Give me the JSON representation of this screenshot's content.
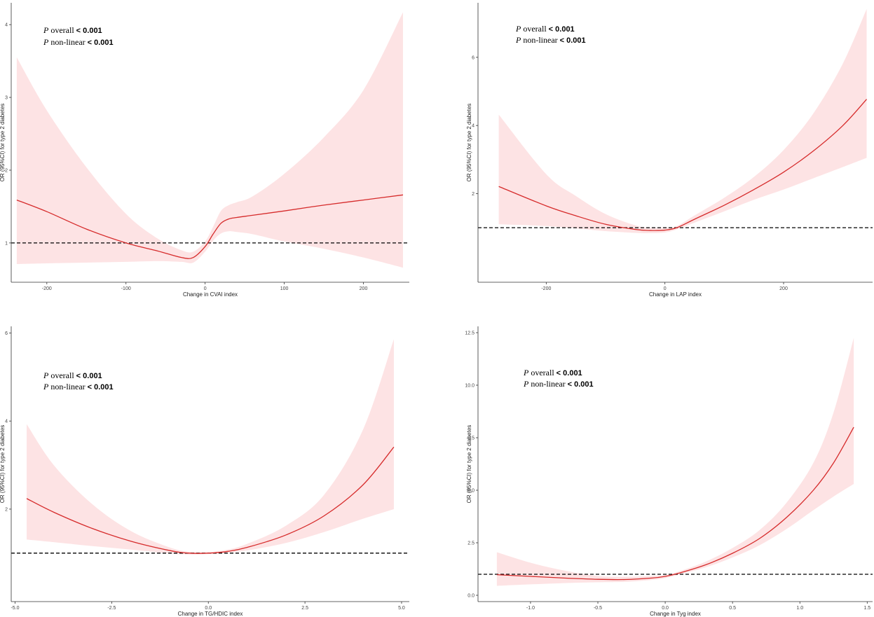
{
  "colors": {
    "band": "#fde3e4",
    "line": "#d62b2b",
    "ref": "#000000",
    "axis": "#333333"
  },
  "annotation": {
    "p_symbol": "P",
    "overall_label": "overall",
    "nonlinear_label": "non-linear",
    "lt": "<",
    "value": "0.001"
  },
  "chart_data": [
    {
      "type": "line",
      "title": "",
      "xlabel": "Change in CVAI index",
      "ylabel": "OR (95%CI) for type 2 diabetes",
      "xlim": [
        -245,
        258
      ],
      "ylim": [
        0.46,
        4.3
      ],
      "xticks": [
        -200,
        -100,
        0,
        100,
        200
      ],
      "yticks": [
        1,
        2,
        3,
        4
      ],
      "reference_y": 1,
      "series": [
        {
          "name": "OR",
          "x": [
            -238,
            -200,
            -150,
            -100,
            -60,
            -30,
            -15,
            0,
            10,
            20,
            30,
            40,
            60,
            100,
            150,
            200,
            250
          ],
          "y": [
            1.59,
            1.43,
            1.19,
            1.0,
            0.89,
            0.8,
            0.8,
            0.95,
            1.12,
            1.27,
            1.33,
            1.35,
            1.38,
            1.44,
            1.52,
            1.59,
            1.66
          ],
          "lower": [
            0.71,
            0.72,
            0.73,
            0.74,
            0.75,
            0.74,
            0.73,
            0.88,
            1.03,
            1.13,
            1.16,
            1.15,
            1.12,
            1.02,
            0.92,
            0.8,
            0.66
          ],
          "upper": [
            3.55,
            2.82,
            2.04,
            1.4,
            1.06,
            0.9,
            0.88,
            1.02,
            1.22,
            1.44,
            1.52,
            1.56,
            1.64,
            1.95,
            2.45,
            3.1,
            4.17
          ]
        }
      ]
    },
    {
      "type": "line",
      "title": "",
      "xlabel": "Change in LAP index",
      "ylabel": "OR (95%CI) for type 2 diabetes",
      "xlim": [
        -315,
        350
      ],
      "ylim": [
        -0.6,
        7.6
      ],
      "xticks": [
        -200,
        0,
        200
      ],
      "yticks": [
        2,
        4,
        6
      ],
      "reference_y": 1,
      "series": [
        {
          "name": "OR",
          "x": [
            -280,
            -200,
            -150,
            -100,
            -50,
            -25,
            0,
            20,
            50,
            100,
            150,
            200,
            250,
            300,
            340
          ],
          "y": [
            2.21,
            1.64,
            1.35,
            1.1,
            0.95,
            0.92,
            0.93,
            1.0,
            1.25,
            1.66,
            2.12,
            2.63,
            3.25,
            4.0,
            4.77
          ],
          "lower": [
            1.1,
            1.05,
            0.98,
            0.9,
            0.85,
            0.84,
            0.86,
            0.95,
            1.15,
            1.48,
            1.82,
            2.12,
            2.45,
            2.78,
            3.05
          ],
          "upper": [
            4.32,
            2.57,
            1.93,
            1.4,
            1.07,
            1.0,
            1.0,
            1.05,
            1.36,
            1.88,
            2.49,
            3.28,
            4.35,
            5.82,
            7.42
          ]
        }
      ]
    },
    {
      "type": "line",
      "title": "",
      "xlabel": "Change in TG/HDIC index",
      "ylabel": "OR (95%CI) for type 2 diabetes",
      "xlim": [
        -5.1,
        5.2
      ],
      "ylim": [
        -0.1,
        6.15
      ],
      "xticks": [
        -5.0,
        -2.5,
        0.0,
        2.5,
        5.0
      ],
      "xtick_labels": [
        "-5.0",
        "-2.5",
        "0.0",
        "2.5",
        "5.0"
      ],
      "yticks": [
        2,
        4,
        6
      ],
      "reference_y": 1,
      "series": [
        {
          "name": "OR",
          "x": [
            -4.7,
            -4.0,
            -3.0,
            -2.0,
            -1.0,
            -0.5,
            0.0,
            0.5,
            1.0,
            2.0,
            3.0,
            4.0,
            4.8
          ],
          "y": [
            2.24,
            1.93,
            1.56,
            1.27,
            1.06,
            1.0,
            1.0,
            1.04,
            1.13,
            1.41,
            1.85,
            2.55,
            3.41
          ],
          "lower": [
            1.31,
            1.25,
            1.16,
            1.08,
            0.99,
            0.97,
            0.98,
            1.01,
            1.06,
            1.23,
            1.48,
            1.78,
            2.0
          ],
          "upper": [
            3.93,
            3.0,
            2.11,
            1.5,
            1.13,
            1.03,
            1.02,
            1.08,
            1.21,
            1.62,
            2.33,
            3.8,
            5.86
          ]
        }
      ]
    },
    {
      "type": "line",
      "title": "",
      "xlabel": "Change in Tyg index",
      "ylabel": "OR (95%CI) for type 2 diabetes",
      "xlim": [
        -1.39,
        1.54
      ],
      "ylim": [
        -0.3,
        12.8
      ],
      "xticks": [
        -1.0,
        -0.5,
        0.0,
        0.5,
        1.0,
        1.5
      ],
      "xtick_labels": [
        "-1.0",
        "-0.5",
        "0.0",
        "0.5",
        "1.0",
        "1.5"
      ],
      "yticks": [
        0.0,
        2.5,
        5.0,
        7.5,
        10.0,
        12.5
      ],
      "ytick_labels": [
        "0.0",
        "2.5",
        "5.0",
        "7.5",
        "10.0",
        "12.5"
      ],
      "reference_y": 1,
      "series": [
        {
          "name": "OR",
          "x": [
            -1.25,
            -1.0,
            -0.75,
            -0.5,
            -0.3,
            -0.1,
            0.0,
            0.1,
            0.3,
            0.5,
            0.7,
            0.9,
            1.1,
            1.25,
            1.4
          ],
          "y": [
            0.98,
            0.9,
            0.82,
            0.76,
            0.75,
            0.82,
            0.9,
            1.05,
            1.45,
            2.0,
            2.7,
            3.7,
            5.0,
            6.3,
            8.0
          ],
          "lower": [
            0.45,
            0.52,
            0.58,
            0.62,
            0.64,
            0.73,
            0.82,
            0.98,
            1.33,
            1.8,
            2.38,
            3.15,
            4.05,
            4.7,
            5.3
          ],
          "upper": [
            2.05,
            1.55,
            1.18,
            0.92,
            0.88,
            0.92,
            0.97,
            1.13,
            1.6,
            2.25,
            3.1,
            4.4,
            6.3,
            8.7,
            12.25
          ]
        }
      ]
    }
  ]
}
